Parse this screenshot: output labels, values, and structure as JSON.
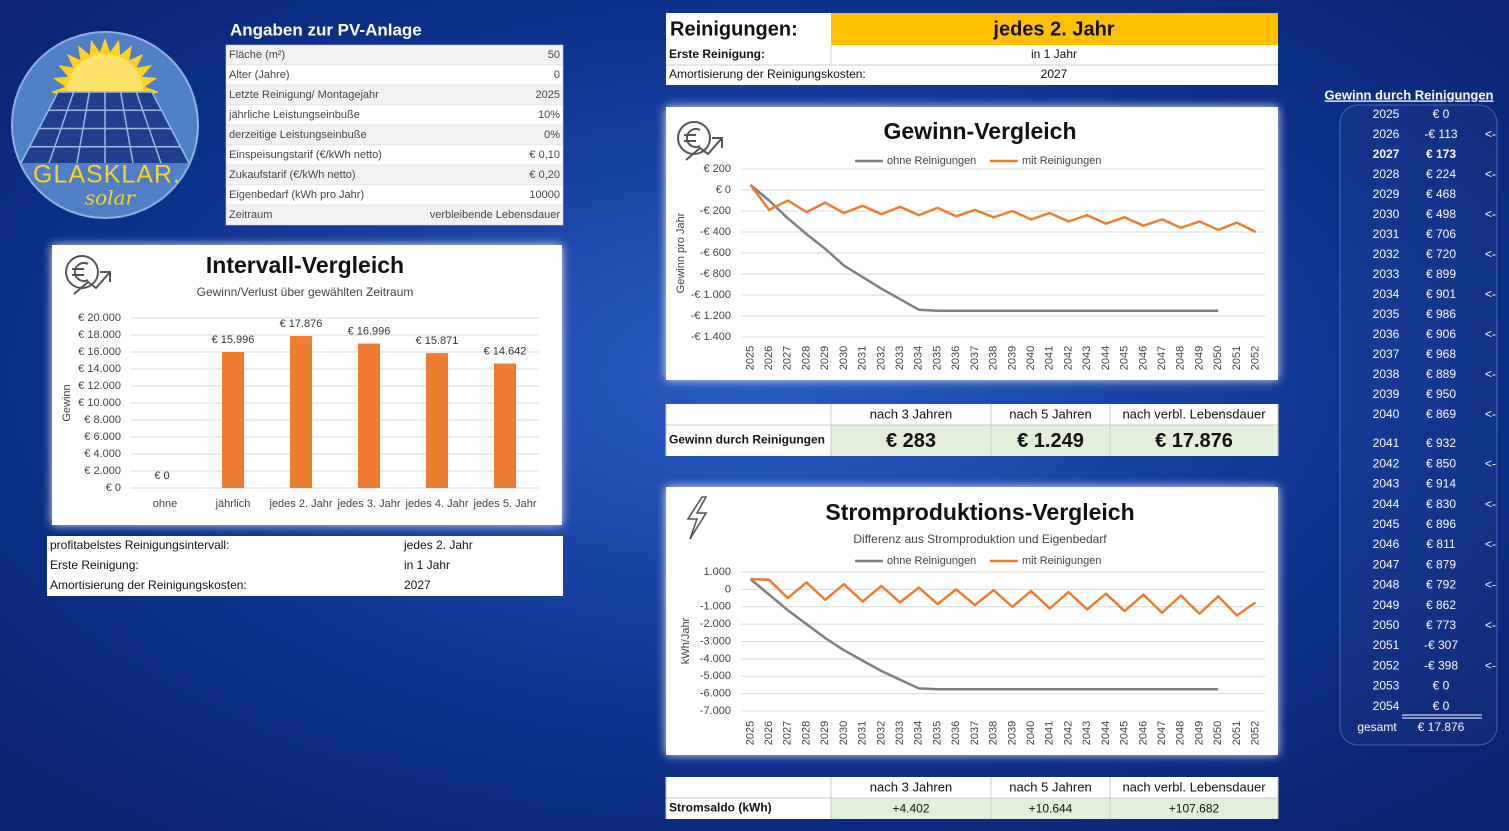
{
  "logo": {
    "name": "GLASKLAR.",
    "tagline": "solar"
  },
  "pv_table": {
    "title": "Angaben zur PV-Anlage",
    "rows": [
      [
        "Fläche (m²)",
        "50"
      ],
      [
        "Alter (Jahre)",
        "0"
      ],
      [
        "Letzte Reinigung/ Montagejahr",
        "2025"
      ],
      [
        "jährliche Leistungseinbuße",
        "10%"
      ],
      [
        "derzeitige Leistungseinbuße",
        "0%"
      ],
      [
        "Einspeisungstarif (€/kWh netto)",
        "€ 0,10"
      ],
      [
        "Zukaufstarif (€/kWh netto)",
        "€ 0,20"
      ],
      [
        "Eigenbedarf (kWh pro Jahr)",
        "10000"
      ],
      [
        "Zeitraum",
        "verbleibende Lebensdauer"
      ]
    ]
  },
  "interval_info": {
    "rows": [
      [
        "profitabelstes Reinigungsintervall:",
        "jedes 2. Jahr"
      ],
      [
        "Erste Reinigung:",
        "in 1 Jahr"
      ],
      [
        "Amortisierung der Reinigungskosten:",
        "2027"
      ]
    ]
  },
  "cleaning": {
    "label": "Reinigungen:",
    "value": "jedes 2. Jahr",
    "rows": [
      [
        "Erste Reinigung:",
        "in 1 Jahr"
      ],
      [
        "Amortisierung der Reinigungskosten:",
        "2027"
      ]
    ]
  },
  "gain_table": {
    "headers": [
      "nach 3 Jahren",
      "nach 5 Jahren",
      "nach verbl. Lebensdauer"
    ],
    "row_label": "Gewinn durch Reinigungen",
    "values": [
      "€ 283",
      "€ 1.249",
      "€ 17.876"
    ]
  },
  "power_table": {
    "headers": [
      "nach 3 Jahren",
      "nach 5 Jahren",
      "nach verbl. Lebensdauer"
    ],
    "row_label": "Stromsaldo (kWh)",
    "values": [
      "+4.402",
      "+10.644",
      "+107.682"
    ]
  },
  "gain_list": {
    "title": "Gewinn durch Reinigungen",
    "rows": [
      {
        "year": "2025",
        "value": "€ 0"
      },
      {
        "year": "2026",
        "value": "-€ 113",
        "marker": "<-"
      },
      {
        "year": "2027",
        "value": "€ 173"
      },
      {
        "year": "2028",
        "value": "€ 224",
        "marker": "<-"
      },
      {
        "year": "2029",
        "value": "€ 468"
      },
      {
        "year": "2030",
        "value": "€ 498",
        "marker": "<-"
      },
      {
        "year": "2031",
        "value": "€ 706"
      },
      {
        "year": "2032",
        "value": "€ 720",
        "marker": "<-"
      },
      {
        "year": "2033",
        "value": "€ 899"
      },
      {
        "year": "2034",
        "value": "€ 901",
        "marker": "<-"
      },
      {
        "year": "2035",
        "value": "€ 986"
      },
      {
        "year": "2036",
        "value": "€ 906",
        "marker": "<-"
      },
      {
        "year": "2037",
        "value": "€ 968"
      },
      {
        "year": "2038",
        "value": "€ 889",
        "marker": "<-"
      },
      {
        "year": "2039",
        "value": "€ 950"
      },
      {
        "year": "2040",
        "value": "€ 869",
        "marker": "<-"
      },
      {
        "year": "2041",
        "value": "€ 932"
      },
      {
        "year": "2042",
        "value": "€ 850",
        "marker": "<-"
      },
      {
        "year": "2043",
        "value": "€ 914"
      },
      {
        "year": "2044",
        "value": "€ 830",
        "marker": "<-"
      },
      {
        "year": "2045",
        "value": "€ 896"
      },
      {
        "year": "2046",
        "value": "€ 811",
        "marker": "<-"
      },
      {
        "year": "2047",
        "value": "€ 879"
      },
      {
        "year": "2048",
        "value": "€ 792",
        "marker": "<-"
      },
      {
        "year": "2049",
        "value": "€ 862"
      },
      {
        "year": "2050",
        "value": "€ 773",
        "marker": "<-"
      },
      {
        "year": "2051",
        "value": "-€ 307"
      },
      {
        "year": "2052",
        "value": "-€ 398",
        "marker": "<-"
      },
      {
        "year": "2053",
        "value": "€ 0"
      },
      {
        "year": "2054",
        "value": "€ 0"
      }
    ],
    "total_label": "gesamt",
    "total": "€ 17.876"
  },
  "chart_data": [
    {
      "type": "bar",
      "title": "Intervall-Vergleich",
      "subtitle": "Gewinn/Verlust über gewählten Zeitraum",
      "y_label": "Gewinn",
      "color": "#ed7d31",
      "grid": true,
      "categories": [
        "ohne",
        "jährlich",
        "jedes 2. Jahr",
        "jedes 3. Jahr",
        "jedes 4. Jahr",
        "jedes 5. Jahr"
      ],
      "values": [
        0,
        15996,
        17876,
        16996,
        15871,
        14642
      ],
      "value_labels": [
        "€ 0",
        "€ 15.996",
        "€ 17.876",
        "€ 16.996",
        "€ 15.871",
        "€ 14.642"
      ],
      "ylim": [
        0,
        20000
      ],
      "yticks": [
        {
          "value": 0,
          "label": "€ 0"
        },
        {
          "value": 2000,
          "label": "€ 2.000"
        },
        {
          "value": 4000,
          "label": "€ 4.000"
        },
        {
          "value": 6000,
          "label": "€ 6.000"
        },
        {
          "value": 8000,
          "label": "€ 8.000"
        },
        {
          "value": 10000,
          "label": "€ 10.000"
        },
        {
          "value": 12000,
          "label": "€ 12.000"
        },
        {
          "value": 14000,
          "label": "€ 14.000"
        },
        {
          "value": 16000,
          "label": "€ 16.000"
        },
        {
          "value": 18000,
          "label": "€ 18.000"
        },
        {
          "value": 20000,
          "label": "€ 20.000"
        }
      ]
    },
    {
      "type": "line",
      "title": "Gewinn-Vergleich",
      "y_label": "Gewinn pro Jahr",
      "grid": true,
      "categories": [
        "2025",
        "2026",
        "2027",
        "2028",
        "2029",
        "2030",
        "2031",
        "2032",
        "2033",
        "2034",
        "2035",
        "2036",
        "2037",
        "2038",
        "2039",
        "2040",
        "2041",
        "2042",
        "2043",
        "2044",
        "2045",
        "2046",
        "2047",
        "2048",
        "2049",
        "2050",
        "2051",
        "2052"
      ],
      "series": [
        {
          "name": "ohne Reinigungen",
          "color": "#7f7f7f",
          "values": [
            50,
            -100,
            -270,
            -420,
            -560,
            -720,
            -830,
            -940,
            -1040,
            -1140,
            -1150,
            -1150,
            -1150,
            -1150,
            -1150,
            -1150,
            -1150,
            -1150,
            -1150,
            -1150,
            -1150,
            -1150,
            -1150,
            -1150,
            -1150,
            -1150,
            null,
            null
          ]
        },
        {
          "name": "mit Reinigungen",
          "color": "#ed7d31",
          "values": [
            50,
            -190,
            -100,
            -210,
            -120,
            -220,
            -150,
            -230,
            -160,
            -240,
            -170,
            -250,
            -190,
            -260,
            -200,
            -280,
            -220,
            -300,
            -240,
            -320,
            -260,
            -340,
            -280,
            -360,
            -300,
            -380,
            -310,
            -400
          ]
        }
      ],
      "ylim": [
        -1400,
        200
      ],
      "yticks": [
        {
          "value": 200,
          "label": "€ 200"
        },
        {
          "value": 0,
          "label": "€ 0"
        },
        {
          "value": -200,
          "label": "-€ 200"
        },
        {
          "value": -400,
          "label": "-€ 400"
        },
        {
          "value": -600,
          "label": "-€ 600"
        },
        {
          "value": -800,
          "label": "-€ 800"
        },
        {
          "value": -1000,
          "label": "-€ 1.000"
        },
        {
          "value": -1200,
          "label": "-€ 1.200"
        },
        {
          "value": -1400,
          "label": "-€ 1.400"
        }
      ]
    },
    {
      "type": "line",
      "title": "Stromproduktions-Vergleich",
      "subtitle": "Differenz aus Stromproduktion und Eigenbedarf",
      "y_label": "kWh/Jahr",
      "grid": true,
      "categories": [
        "2025",
        "2026",
        "2027",
        "2028",
        "2029",
        "2030",
        "2031",
        "2032",
        "2033",
        "2034",
        "2035",
        "2036",
        "2037",
        "2038",
        "2039",
        "2040",
        "2041",
        "2042",
        "2043",
        "2044",
        "2045",
        "2046",
        "2047",
        "2048",
        "2049",
        "2050",
        "2051",
        "2052"
      ],
      "series": [
        {
          "name": "ohne Reinigungen",
          "color": "#7f7f7f",
          "values": [
            600,
            -300,
            -1200,
            -2000,
            -2800,
            -3500,
            -4100,
            -4700,
            -5200,
            -5700,
            -5750,
            -5750,
            -5750,
            -5750,
            -5750,
            -5750,
            -5750,
            -5750,
            -5750,
            -5750,
            -5750,
            -5750,
            -5750,
            -5750,
            -5750,
            -5750,
            null,
            null
          ]
        },
        {
          "name": "mit Reinigungen",
          "color": "#ed7d31",
          "values": [
            600,
            550,
            -500,
            400,
            -600,
            300,
            -700,
            200,
            -750,
            100,
            -850,
            0,
            -900,
            -50,
            -1000,
            -100,
            -1100,
            -150,
            -1150,
            -250,
            -1250,
            -300,
            -1350,
            -350,
            -1400,
            -400,
            -1500,
            -750
          ]
        }
      ],
      "ylim": [
        -7000,
        1000
      ],
      "yticks": [
        {
          "value": 1000,
          "label": "1.000"
        },
        0,
        {
          "value": -1000,
          "label": "-1.000"
        },
        {
          "value": -2000,
          "label": "-2.000"
        },
        {
          "value": -3000,
          "label": "-3.000"
        },
        {
          "value": -4000,
          "label": "-4.000"
        },
        {
          "value": -5000,
          "label": "-5.000"
        },
        {
          "value": -6000,
          "label": "-6.000"
        },
        {
          "value": -7000,
          "label": "-7.000"
        }
      ]
    }
  ]
}
